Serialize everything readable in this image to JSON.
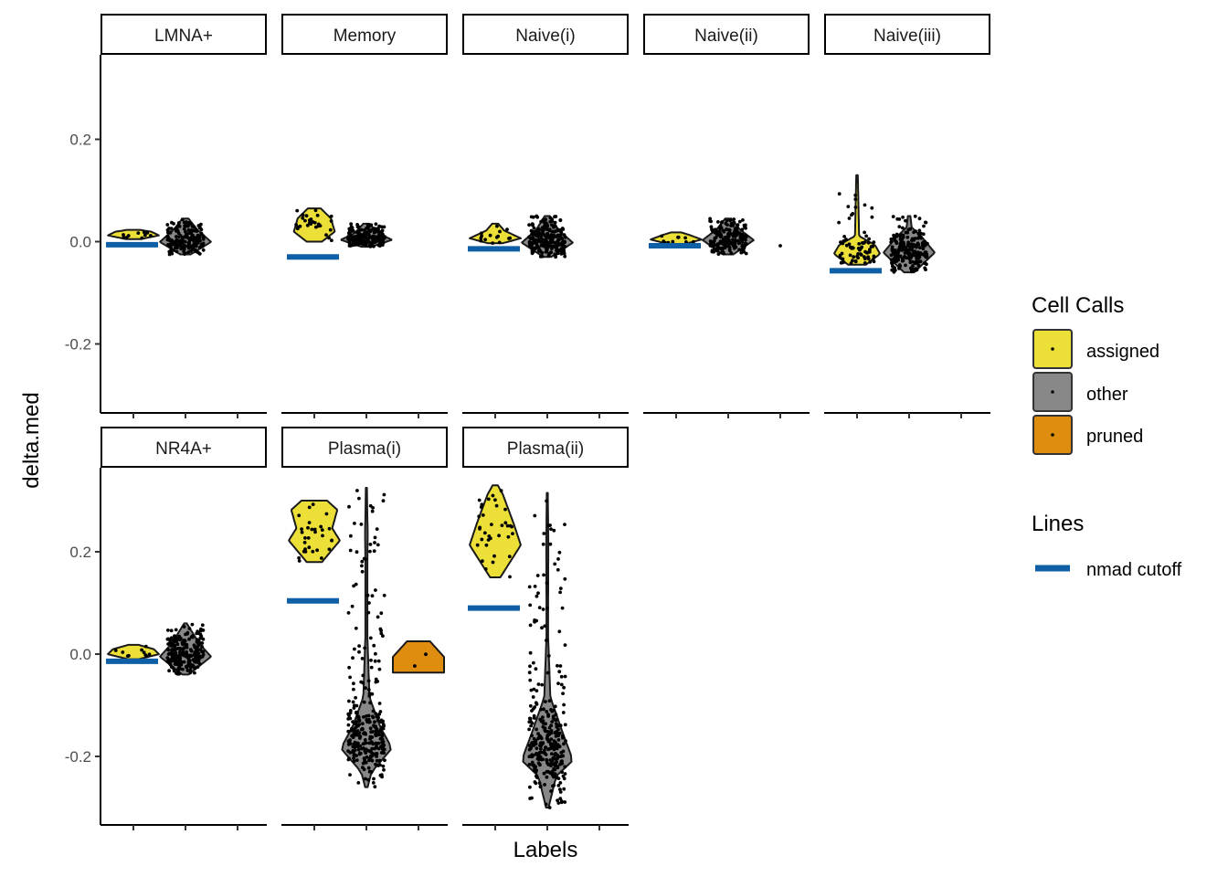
{
  "chart_data": {
    "type": "violin",
    "xlabel": "Labels",
    "ylabel": "delta.med",
    "ylim": [
      -0.33,
      0.36
    ],
    "y_ticks": [
      "-0.2",
      "0.0",
      "0.2"
    ],
    "y_tick_values": [
      -0.2,
      0.0,
      0.2
    ],
    "x_categories": [
      "assigned",
      "other",
      "pruned"
    ],
    "x_tick_labels_shown": false,
    "grid": false,
    "facet_layout": {
      "rows": 2,
      "cols": 5
    },
    "legend": {
      "position": "right",
      "fill": {
        "title": "Cell Calls",
        "entries": [
          {
            "name": "assigned",
            "color": "#EBDF38"
          },
          {
            "name": "other",
            "color": "#888888"
          },
          {
            "name": "pruned",
            "color": "#DF8D0F"
          }
        ]
      },
      "lines": {
        "title": "Lines",
        "entries": [
          {
            "name": "nmad cutoff",
            "color": "#0E5FA5"
          }
        ]
      }
    },
    "panels": [
      {
        "label": "LMNA+",
        "cutoff": -0.006,
        "groups": [
          {
            "call": "assigned",
            "min": 0.005,
            "max": 0.023,
            "n": 10,
            "kde": [
              [
                0,
                0.3
              ],
              [
                0.4,
                1
              ],
              [
                0.8,
                0.7
              ],
              [
                1,
                0.25
              ]
            ]
          },
          {
            "call": "other",
            "min": -0.025,
            "max": 0.045,
            "n": 190,
            "kde": [
              [
                0,
                0.2
              ],
              [
                0.35,
                1
              ],
              [
                0.7,
                0.45
              ],
              [
                1,
                0.12
              ]
            ]
          }
        ]
      },
      {
        "label": "Memory",
        "cutoff": -0.03,
        "groups": [
          {
            "call": "assigned",
            "min": 0.0,
            "max": 0.065,
            "n": 28,
            "kde": [
              [
                0,
                0.3
              ],
              [
                0.3,
                0.8
              ],
              [
                0.7,
                0.65
              ],
              [
                1,
                0.25
              ]
            ]
          },
          {
            "call": "other",
            "min": -0.01,
            "max": 0.035,
            "n": 200,
            "kde": [
              [
                0,
                0.2
              ],
              [
                0.3,
                1
              ],
              [
                0.6,
                0.45
              ],
              [
                1,
                0.12
              ]
            ]
          }
        ]
      },
      {
        "label": "Naive(i)",
        "cutoff": -0.014,
        "groups": [
          {
            "call": "assigned",
            "min": -0.003,
            "max": 0.035,
            "n": 15,
            "kde": [
              [
                0,
                0.3
              ],
              [
                0.25,
                1
              ],
              [
                0.65,
                0.35
              ],
              [
                1,
                0.12
              ]
            ]
          },
          {
            "call": "other",
            "min": -0.03,
            "max": 0.05,
            "n": 240,
            "kde": [
              [
                0,
                0.15
              ],
              [
                0.35,
                1
              ],
              [
                0.65,
                0.45
              ],
              [
                1,
                0.1
              ]
            ]
          }
        ]
      },
      {
        "label": "Naive(ii)",
        "cutoff": -0.008,
        "groups": [
          {
            "call": "assigned",
            "min": -0.005,
            "max": 0.018,
            "n": 10,
            "kde": [
              [
                0,
                0.3
              ],
              [
                0.4,
                1
              ],
              [
                0.8,
                0.5
              ],
              [
                1,
                0.2
              ]
            ]
          },
          {
            "call": "other",
            "min": -0.025,
            "max": 0.045,
            "n": 180,
            "kde": [
              [
                0,
                0.2
              ],
              [
                0.4,
                1
              ],
              [
                0.7,
                0.45
              ],
              [
                1,
                0.12
              ]
            ]
          },
          {
            "call": "pruned",
            "min": -0.008,
            "max": -0.008,
            "n": 1,
            "kde": []
          }
        ]
      },
      {
        "label": "Naive(iii)",
        "cutoff": -0.057,
        "groups": [
          {
            "call": "assigned",
            "min": -0.045,
            "max": 0.13,
            "n": 70,
            "kde": [
              [
                0,
                0.35
              ],
              [
                0.12,
                0.9
              ],
              [
                0.22,
                0.7
              ],
              [
                0.32,
                0.08
              ],
              [
                1,
                0.03
              ]
            ]
          },
          {
            "call": "other",
            "min": -0.06,
            "max": 0.05,
            "n": 220,
            "kde": [
              [
                0,
                0.2
              ],
              [
                0.35,
                1
              ],
              [
                0.6,
                0.55
              ],
              [
                0.8,
                0.1
              ],
              [
                1,
                0.05
              ]
            ]
          }
        ]
      },
      {
        "label": "NR4A+",
        "cutoff": -0.014,
        "groups": [
          {
            "call": "assigned",
            "min": -0.01,
            "max": 0.018,
            "n": 10,
            "kde": [
              [
                0,
                0.2
              ],
              [
                0.35,
                1
              ],
              [
                0.7,
                0.8
              ],
              [
                1,
                0.2
              ]
            ]
          },
          {
            "call": "other",
            "min": -0.04,
            "max": 0.06,
            "n": 230,
            "kde": [
              [
                0,
                0.12
              ],
              [
                0.35,
                1
              ],
              [
                0.6,
                0.55
              ],
              [
                1,
                0.05
              ]
            ]
          }
        ]
      },
      {
        "label": "Plasma(i)",
        "cutoff": 0.104,
        "groups": [
          {
            "call": "assigned",
            "min": 0.18,
            "max": 0.3,
            "n": 30,
            "kde": [
              [
                0,
                0.3
              ],
              [
                0.35,
                1
              ],
              [
                0.55,
                0.7
              ],
              [
                0.85,
                0.9
              ],
              [
                1,
                0.5
              ]
            ]
          },
          {
            "call": "other",
            "min": -0.26,
            "max": 0.325,
            "n": 300,
            "kde": [
              [
                0,
                0.05
              ],
              [
                0.05,
                0.2
              ],
              [
                0.13,
                1
              ],
              [
                0.2,
                0.55
              ],
              [
                0.3,
                0.12
              ],
              [
                0.5,
                0.04
              ],
              [
                0.75,
                0.04
              ],
              [
                0.85,
                0.05
              ],
              [
                1,
                0.02
              ]
            ]
          },
          {
            "call": "pruned",
            "min": -0.036,
            "max": 0.025,
            "n": 2,
            "kde": [
              [
                0,
                1
              ],
              [
                0.5,
                1
              ],
              [
                1,
                0.45
              ]
            ]
          }
        ]
      },
      {
        "label": "Plasma(ii)",
        "cutoff": 0.09,
        "groups": [
          {
            "call": "assigned",
            "min": 0.15,
            "max": 0.33,
            "n": 35,
            "kde": [
              [
                0,
                0.2
              ],
              [
                0.35,
                1
              ],
              [
                0.6,
                0.7
              ],
              [
                0.9,
                0.3
              ],
              [
                1,
                0.1
              ]
            ]
          },
          {
            "call": "other",
            "min": -0.3,
            "max": 0.315,
            "n": 320,
            "kde": [
              [
                0,
                0.05
              ],
              [
                0.1,
                0.35
              ],
              [
                0.15,
                1
              ],
              [
                0.25,
                0.55
              ],
              [
                0.35,
                0.12
              ],
              [
                0.55,
                0.03
              ],
              [
                0.85,
                0.04
              ],
              [
                1,
                0.02
              ]
            ]
          }
        ]
      }
    ]
  }
}
